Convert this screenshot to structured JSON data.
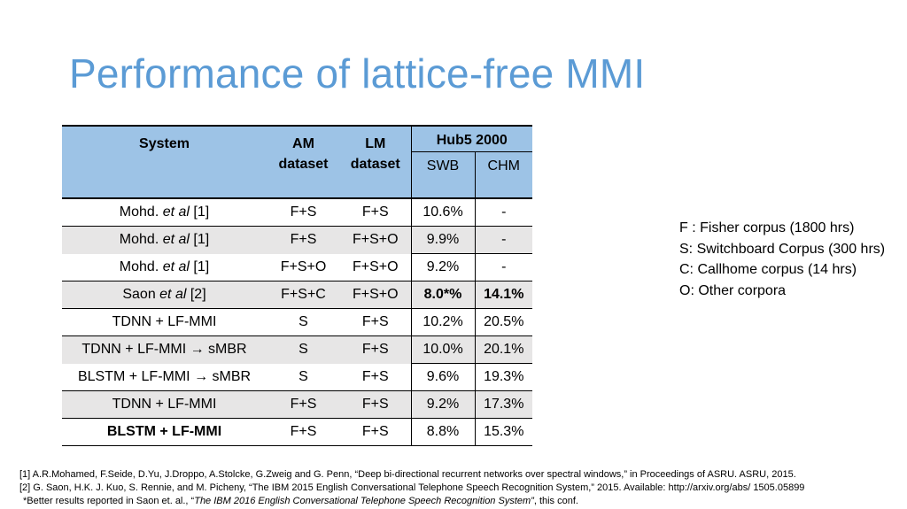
{
  "slide": {
    "title": "Performance of lattice-free MMI"
  },
  "table": {
    "headers": {
      "system": "System",
      "am_line1": "AM",
      "am_line2": "dataset",
      "lm_line1": "LM",
      "lm_line2": "dataset",
      "hub5": "Hub5 2000",
      "swb": "SWB",
      "chm": "CHM"
    },
    "rows": [
      {
        "sys_pre": "Mohd. ",
        "sys_it": "et al",
        "sys_post": " [1]",
        "am": "F+S",
        "lm": "F+S",
        "swb": "10.6%",
        "chm": "-"
      },
      {
        "sys_pre": "Mohd. ",
        "sys_it": "et al",
        "sys_post": " [1]",
        "am": "F+S",
        "lm": "F+S+O",
        "swb": "9.9%",
        "chm": "-"
      },
      {
        "sys_pre": "Mohd. ",
        "sys_it": "et al",
        "sys_post": " [1]",
        "am": "F+S+O",
        "lm": "F+S+O",
        "swb": "9.2%",
        "chm": "-"
      },
      {
        "sys_pre": "Saon ",
        "sys_it": "et al",
        "sys_post": " [2]",
        "am": "F+S+C",
        "lm": "F+S+O",
        "swb": "8.0*%",
        "chm": "14.1%"
      },
      {
        "sys": "TDNN + LF-MMI",
        "am": "S",
        "lm": "F+S",
        "swb": "10.2%",
        "chm": "20.5%"
      },
      {
        "sys": "TDNN + LF-MMI → sMBR",
        "am": "S",
        "lm": "F+S",
        "swb": "10.0%",
        "chm": "20.1%"
      },
      {
        "sys": "BLSTM + LF-MMI → sMBR",
        "am": "S",
        "lm": "F+S",
        "swb": "9.6%",
        "chm": "19.3%"
      },
      {
        "sys": "TDNN + LF-MMI",
        "am": "F+S",
        "lm": "F+S",
        "swb": "9.2%",
        "chm": "17.3%"
      },
      {
        "sys": "BLSTM + LF-MMI",
        "am": "F+S",
        "lm": "F+S",
        "swb": "8.8%",
        "chm": "15.3%"
      }
    ]
  },
  "legend": {
    "f": "F : Fisher corpus (1800 hrs)",
    "s": "S: Switchboard Corpus (300 hrs)",
    "c": "C: Callhome corpus (14 hrs)",
    "o": "O: Other corpora"
  },
  "references": {
    "ref1": "[1] A.R.Mohamed, F.Seide, D.Yu, J.Droppo, A.Stolcke, G.Zweig and G. Penn, “Deep bi-directional recurrent networks over spectral windows,” in Proceedings of ASRU. ASRU, 2015.",
    "ref2": "[2] G. Saon, H.K. J. Kuo, S. Rennie, and M. Picheny, “The IBM 2015 English Conversational Telephone Speech Recognition System,” 2015. Available: http://arxiv.org/abs/ 1505.05899",
    "note_pre": "*Better results reported in Saon et. al., “",
    "note_it": "The IBM 2016 English Conversational Telephone Speech Recognition System”",
    "note_post": ", this conf."
  }
}
